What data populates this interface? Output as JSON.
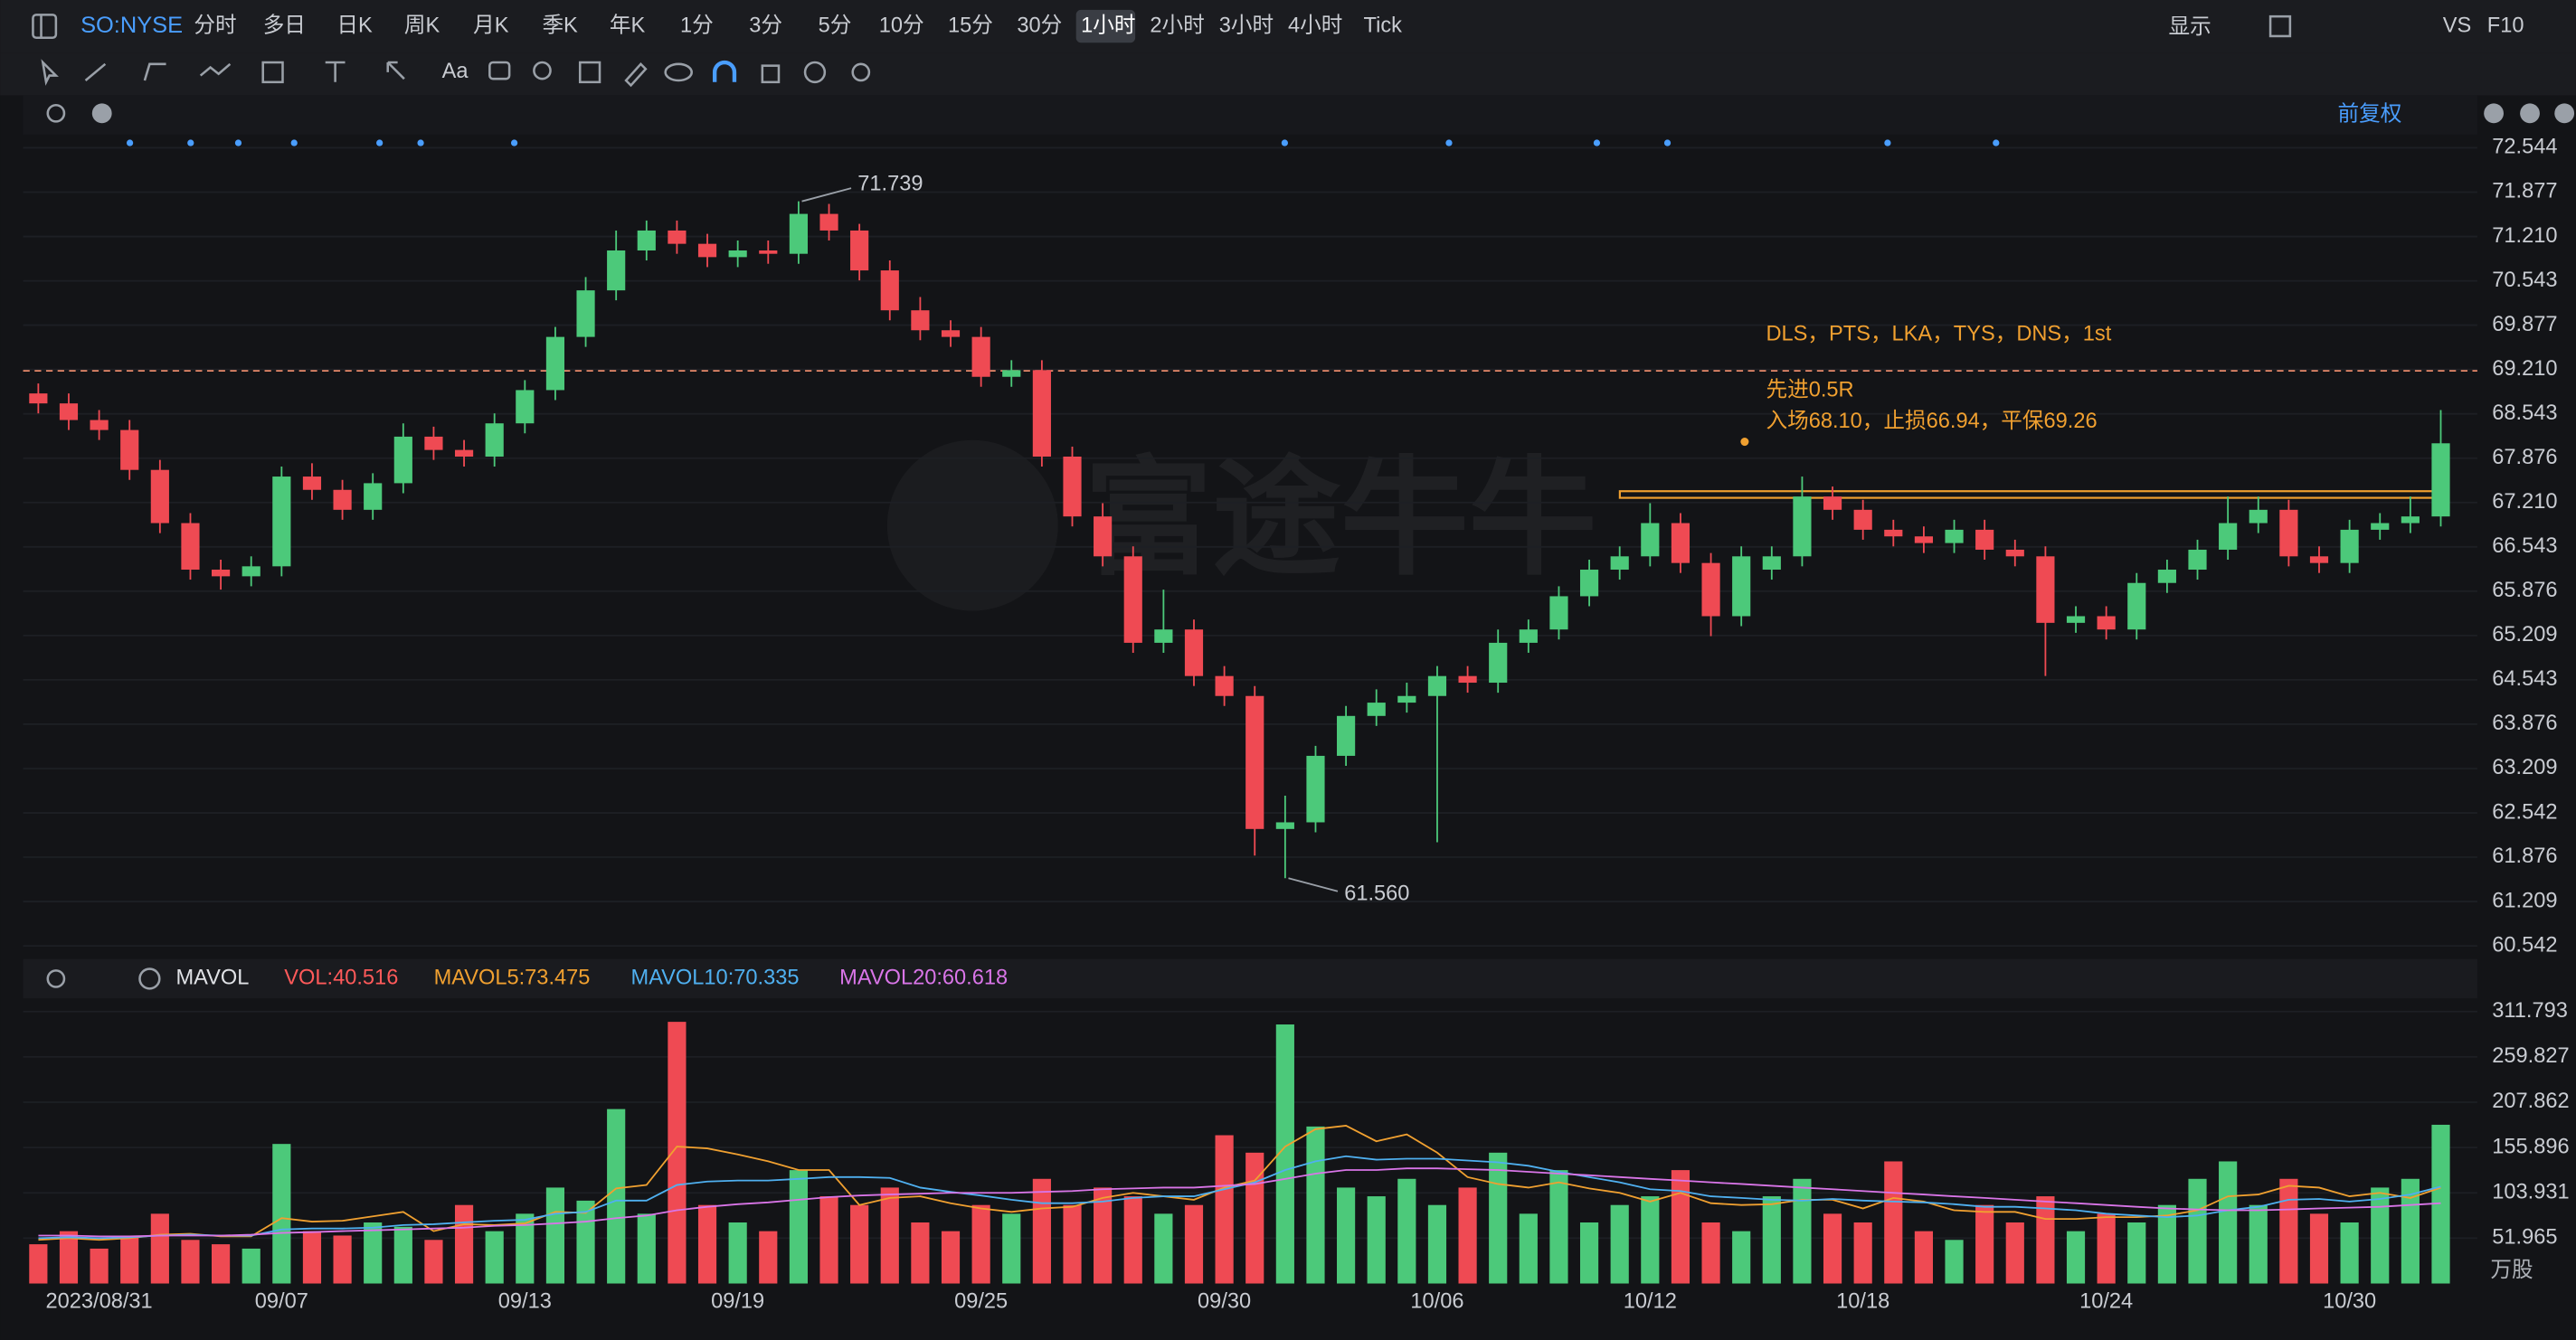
{
  "toolbar": {
    "symbol": "SO:NYSE",
    "periods": [
      "分时",
      "多日",
      "日K",
      "周K",
      "月K",
      "季K",
      "年K",
      "1分",
      "3分",
      "5分",
      "10分",
      "15分",
      "30分",
      "1小时",
      "2小时",
      "3小时",
      "4小时",
      "Tick"
    ],
    "selected": "1小时",
    "display": "显示",
    "vs": "VS",
    "f10": "F10",
    "text_tool": "Aa",
    "adjust": "前复权"
  },
  "watermark": "富途牛牛",
  "chart_data": [
    {
      "type": "candlestick",
      "up_color": "#4cc97a",
      "down_color": "#ef4a53",
      "categories": [
        null,
        null,
        "2023/08/31",
        null,
        null,
        null,
        null,
        null,
        "09/07",
        null,
        null,
        null,
        null,
        null,
        null,
        null,
        "09/13",
        null,
        null,
        null,
        null,
        null,
        null,
        "09/19",
        null,
        null,
        null,
        null,
        null,
        null,
        null,
        "09/25",
        null,
        null,
        null,
        null,
        null,
        null,
        null,
        "09/30",
        null,
        null,
        null,
        null,
        null,
        null,
        "10/06",
        null,
        null,
        null,
        null,
        null,
        null,
        "10/12",
        null,
        null,
        null,
        null,
        null,
        null,
        "10/18",
        null,
        null,
        null,
        null,
        null,
        null,
        null,
        "10/24",
        null,
        null,
        null,
        null,
        null,
        null,
        null,
        "10/30",
        null,
        null,
        null
      ],
      "open": [
        68.85,
        68.7,
        68.45,
        68.3,
        67.7,
        66.9,
        66.2,
        66.1,
        66.25,
        67.6,
        67.4,
        67.1,
        67.5,
        68.2,
        68.0,
        67.9,
        68.4,
        68.9,
        69.7,
        70.4,
        71.0,
        71.3,
        71.1,
        70.9,
        71.0,
        70.95,
        71.55,
        71.3,
        70.7,
        70.1,
        69.8,
        69.7,
        69.1,
        69.2,
        67.9,
        67.0,
        66.4,
        65.1,
        65.3,
        64.6,
        64.3,
        62.3,
        62.4,
        63.4,
        64.0,
        64.2,
        64.3,
        64.6,
        64.5,
        65.1,
        65.3,
        65.8,
        66.2,
        66.4,
        66.9,
        66.3,
        65.5,
        66.2,
        66.4,
        67.3,
        67.1,
        66.8,
        66.7,
        66.6,
        66.8,
        66.5,
        66.4,
        65.4,
        65.5,
        65.3,
        66.0,
        66.2,
        66.5,
        66.9,
        67.1,
        66.4,
        66.3,
        66.8,
        66.9,
        67.0
      ],
      "high": [
        69.0,
        68.85,
        68.6,
        68.45,
        67.85,
        67.05,
        66.35,
        66.4,
        67.75,
        67.8,
        67.55,
        67.65,
        68.4,
        68.35,
        68.15,
        68.55,
        69.05,
        69.85,
        70.6,
        71.3,
        71.45,
        71.45,
        71.25,
        71.15,
        71.15,
        71.739,
        71.7,
        71.4,
        70.85,
        70.3,
        69.95,
        69.85,
        69.35,
        69.35,
        68.05,
        67.2,
        66.55,
        65.9,
        65.45,
        64.75,
        64.45,
        62.8,
        63.55,
        64.15,
        64.4,
        64.5,
        64.75,
        64.75,
        65.3,
        65.45,
        65.95,
        66.35,
        66.55,
        67.2,
        67.05,
        66.45,
        66.55,
        66.55,
        67.6,
        67.45,
        67.25,
        66.95,
        66.85,
        66.95,
        66.95,
        66.65,
        66.55,
        65.65,
        65.65,
        66.15,
        66.35,
        66.65,
        67.3,
        67.3,
        67.25,
        66.55,
        66.95,
        67.05,
        67.3,
        68.6
      ],
      "low": [
        68.55,
        68.3,
        68.15,
        67.55,
        66.75,
        66.05,
        65.9,
        65.95,
        66.1,
        67.25,
        66.95,
        66.95,
        67.35,
        67.85,
        67.75,
        67.75,
        68.25,
        68.75,
        69.55,
        70.25,
        70.85,
        70.95,
        70.75,
        70.75,
        70.8,
        70.8,
        71.15,
        70.55,
        69.95,
        69.65,
        69.55,
        68.95,
        68.95,
        67.75,
        66.85,
        66.25,
        64.95,
        64.95,
        64.45,
        64.15,
        61.9,
        61.56,
        62.25,
        63.25,
        63.85,
        64.05,
        62.1,
        64.35,
        64.35,
        64.95,
        65.15,
        65.65,
        66.05,
        66.25,
        66.15,
        65.2,
        65.35,
        66.05,
        66.25,
        66.95,
        66.65,
        66.55,
        66.45,
        66.45,
        66.35,
        66.25,
        64.6,
        65.25,
        65.15,
        65.15,
        65.85,
        66.05,
        66.35,
        66.75,
        66.25,
        66.15,
        66.15,
        66.65,
        66.75,
        66.85
      ],
      "close": [
        68.7,
        68.45,
        68.3,
        67.7,
        66.9,
        66.2,
        66.1,
        66.25,
        67.6,
        67.4,
        67.1,
        67.5,
        68.2,
        68.0,
        67.9,
        68.4,
        68.9,
        69.7,
        70.4,
        71.0,
        71.3,
        71.1,
        70.9,
        71.0,
        70.95,
        71.55,
        71.3,
        70.7,
        70.1,
        69.8,
        69.7,
        69.1,
        69.2,
        67.9,
        67.0,
        66.4,
        65.1,
        65.3,
        64.6,
        64.3,
        62.3,
        62.4,
        63.4,
        64.0,
        64.2,
        64.3,
        64.6,
        64.5,
        65.1,
        65.3,
        65.8,
        66.2,
        66.4,
        66.9,
        66.3,
        65.5,
        66.4,
        66.4,
        67.3,
        67.1,
        66.8,
        66.7,
        66.6,
        66.8,
        66.5,
        66.4,
        65.4,
        65.5,
        65.3,
        66.0,
        66.2,
        66.5,
        66.9,
        67.1,
        66.4,
        66.3,
        66.8,
        66.9,
        67.0,
        68.1
      ],
      "ylim": [
        60.542,
        72.544
      ],
      "yticks": [
        72.544,
        71.877,
        {
          "value": 71.21,
          "label": "71.210"
        },
        70.543,
        69.877,
        {
          "value": 69.21,
          "label": "69.210"
        },
        68.543,
        67.876,
        {
          "value": 67.21,
          "label": "67.210"
        },
        66.543,
        65.876,
        65.209,
        64.543,
        63.876,
        63.209,
        62.542,
        61.876,
        61.209,
        60.542
      ],
      "annotations": [
        {
          "value": 71.739,
          "label": "71.739"
        },
        {
          "value": 61.56,
          "label": "61.560"
        }
      ],
      "hline": {
        "value": 69.19,
        "color": "#e8896a"
      },
      "zone": {
        "values": [
          67.28,
          67.38
        ],
        "color": "#f0a030"
      },
      "notes": [
        "DLS，PTS，LKA，TYS，DNS，1st",
        "先进0.5R",
        "入场68.10，止损66.94，平保69.26"
      ],
      "note_color": "#f0a030"
    },
    {
      "type": "bar",
      "indicator": "MAVOL",
      "unit": "万股",
      "values": [
        45,
        60,
        40,
        55,
        80,
        50,
        45,
        40,
        160,
        60,
        55,
        70,
        65,
        50,
        90,
        60,
        80,
        110,
        95,
        200,
        80,
        300,
        90,
        70,
        60,
        130,
        100,
        90,
        110,
        70,
        60,
        90,
        80,
        120,
        90,
        110,
        100,
        80,
        90,
        170,
        150,
        297,
        180,
        110,
        100,
        120,
        90,
        110,
        150,
        80,
        130,
        70,
        90,
        100,
        130,
        70,
        60,
        100,
        120,
        80,
        70,
        140,
        60,
        50,
        90,
        70,
        100,
        60,
        80,
        70,
        90,
        120,
        140,
        90,
        120,
        80,
        70,
        110,
        120,
        182
      ],
      "legend_labels": [
        {
          "text": "VOL:40.516",
          "color": "#ff5a5a"
        },
        {
          "text": "MAVOL5:73.475",
          "color": "#f0a030"
        },
        {
          "text": "MAVOL10:70.335",
          "color": "#4fb0f0"
        },
        {
          "text": "MAVOL20:60.618",
          "color": "#d975e8"
        }
      ],
      "series": [
        {
          "name": "MAVOL5",
          "color": "#f0a030",
          "values": [
            50,
            52,
            50,
            52,
            56,
            57,
            54,
            54,
            75,
            71,
            72,
            77,
            82,
            60,
            68,
            67,
            69,
            82,
            81,
            109,
            113,
            157,
            155,
            148,
            140,
            130,
            130,
            90,
            98,
            100,
            92,
            86,
            82,
            86,
            88,
            98,
            104,
            100,
            96,
            110,
            118,
            157,
            177,
            181,
            163,
            171,
            150,
            122,
            114,
            110,
            116,
            109,
            104,
            94,
            104,
            92,
            90,
            91,
            96,
            96,
            86,
            98,
            94,
            84,
            82,
            82,
            74,
            74,
            76,
            76,
            78,
            84,
            100,
            102,
            112,
            110,
            100,
            104,
            98,
            110
          ]
        },
        {
          "name": "MAVOL10",
          "color": "#4fb0f0",
          "values": [
            52,
            53,
            52,
            53,
            55,
            56,
            55,
            55,
            62,
            63,
            63,
            64,
            67,
            68,
            70,
            72,
            73,
            80,
            82,
            95,
            95,
            113,
            117,
            118,
            118,
            120,
            122,
            122,
            121,
            110,
            105,
            101,
            96,
            92,
            92,
            94,
            98,
            100,
            100,
            108,
            116,
            130,
            140,
            146,
            142,
            143,
            143,
            141,
            139,
            135,
            128,
            122,
            116,
            108,
            106,
            100,
            98,
            96,
            95,
            97,
            95,
            94,
            93,
            91,
            88,
            88,
            86,
            84,
            80,
            78,
            76,
            78,
            84,
            88,
            96,
            97,
            94,
            97,
            102,
            111
          ]
        },
        {
          "name": "MAVOL20",
          "color": "#d975e8",
          "values": [
            55,
            55,
            54,
            54,
            55,
            55,
            55,
            56,
            58,
            59,
            60,
            61,
            62,
            63,
            64,
            66,
            67,
            69,
            71,
            75,
            78,
            84,
            88,
            91,
            93,
            96,
            99,
            101,
            102,
            103,
            104,
            104,
            104,
            105,
            106,
            108,
            109,
            110,
            110,
            112,
            114,
            120,
            126,
            130,
            130,
            132,
            132,
            131,
            130,
            128,
            126,
            124,
            122,
            120,
            118,
            116,
            114,
            112,
            110,
            108,
            106,
            104,
            102,
            100,
            98,
            96,
            94,
            92,
            90,
            88,
            86,
            85,
            84,
            84,
            85,
            86,
            87,
            88,
            90,
            92
          ]
        }
      ],
      "ylim": [
        0,
        330.6
      ],
      "yticks": [
        311.793,
        259.827,
        207.862,
        155.896,
        103.931,
        51.965
      ]
    }
  ]
}
